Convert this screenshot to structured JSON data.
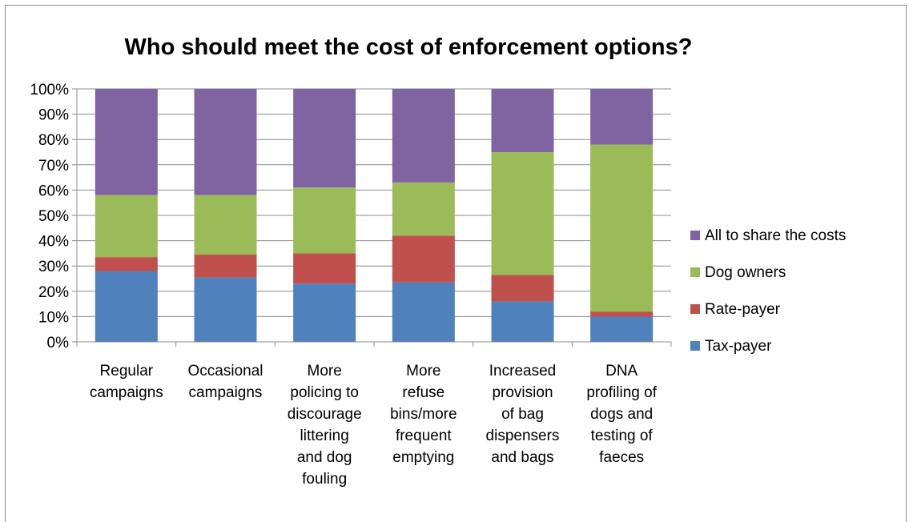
{
  "chart_data": {
    "type": "bar",
    "stacked": "percent",
    "title": "Who should meet the cost of enforcement options?",
    "xlabel": "",
    "ylabel": "",
    "ylim": [
      0,
      100
    ],
    "y_ticks": [
      "0%",
      "10%",
      "20%",
      "30%",
      "40%",
      "50%",
      "60%",
      "70%",
      "80%",
      "90%",
      "100%"
    ],
    "grid": true,
    "legend_position": "right",
    "categories": [
      "Regular campaigns",
      "Occasional campaigns",
      "More policing to discourage littering and dog fouling",
      "More refuse bins/more frequent emptying",
      "Increased provision of bag dispensers and bags",
      "DNA profiling of dogs and testing of faeces"
    ],
    "category_label_lines": [
      [
        "Regular",
        "campaigns"
      ],
      [
        "Occasional",
        "campaigns"
      ],
      [
        "More",
        "policing to",
        "discourage",
        "littering",
        "and dog",
        "fouling"
      ],
      [
        "More",
        "refuse",
        "bins/more",
        "frequent",
        "emptying"
      ],
      [
        "Increased",
        "provision",
        "of bag",
        "dispensers",
        "and bags"
      ],
      [
        "DNA",
        "profiling of",
        "dogs and",
        "testing of",
        "faeces"
      ]
    ],
    "series": [
      {
        "name": "Tax-payer",
        "color": "#4f81bd",
        "values": [
          28,
          25.5,
          23,
          23.5,
          16,
          10
        ]
      },
      {
        "name": "Rate-payer",
        "color": "#c0504d",
        "values": [
          5.5,
          9,
          12,
          18.5,
          10.5,
          2
        ]
      },
      {
        "name": "Dog owners",
        "color": "#9bbb59",
        "values": [
          24.5,
          23.5,
          26,
          21,
          48.5,
          66
        ]
      },
      {
        "name": "All to share the costs",
        "color": "#8064a2",
        "values": [
          42,
          42,
          39,
          37,
          25,
          22
        ]
      }
    ]
  }
}
